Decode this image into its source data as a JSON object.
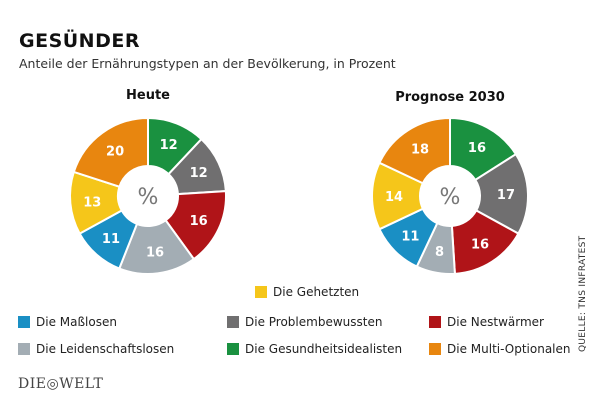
{
  "header": {
    "title": "GESÜNDER",
    "subtitle": "Anteile der Ernährungstypen an der Bevölkerung, in Prozent"
  },
  "chart_data": [
    {
      "type": "pie",
      "title": "Heute",
      "center_label": "%",
      "categories": [
        "Die Gesundheitsidealisten",
        "Die Problembewussten",
        "Die Nestwärmer",
        "Die Leidenschaftslosen",
        "Die Maßlosen",
        "Die Gehetzten",
        "Die Multi-Optionalen"
      ],
      "values": [
        12,
        12,
        16,
        16,
        11,
        13,
        20
      ],
      "colors": [
        "#1a9140",
        "#706f70",
        "#b01418",
        "#a3adb4",
        "#1a8fc4",
        "#f5c61a",
        "#e8860f"
      ],
      "donut": true,
      "order": "clockwise-from-top"
    },
    {
      "type": "pie",
      "title": "Prognose 2030",
      "center_label": "%",
      "categories": [
        "Die Gesundheitsidealisten",
        "Die Problembewussten",
        "Die Nestwärmer",
        "Die Leidenschaftslosen",
        "Die Maßlosen",
        "Die Gehetzten",
        "Die Multi-Optionalen"
      ],
      "values": [
        16,
        17,
        16,
        8,
        11,
        14,
        18
      ],
      "colors": [
        "#1a9140",
        "#706f70",
        "#b01418",
        "#a3adb4",
        "#1a8fc4",
        "#f5c61a",
        "#e8860f"
      ],
      "donut": true,
      "order": "clockwise-from-top"
    }
  ],
  "legend": [
    {
      "label": "Die Gehetzten",
      "color": "#f5c61a"
    },
    {
      "label": "Die Maßlosen",
      "color": "#1a8fc4"
    },
    {
      "label": "Die Problembewussten",
      "color": "#706f70"
    },
    {
      "label": "Die Nestwärmer",
      "color": "#b01418"
    },
    {
      "label": "Die Leidenschaftslosen",
      "color": "#a3adb4"
    },
    {
      "label": "Die Gesundheitsidealisten",
      "color": "#1a9140"
    },
    {
      "label": "Die Multi-Optionalen",
      "color": "#e8860f"
    }
  ],
  "source": "QUELLE: TNS INFRATEST",
  "logo": "DIE◎WELT"
}
